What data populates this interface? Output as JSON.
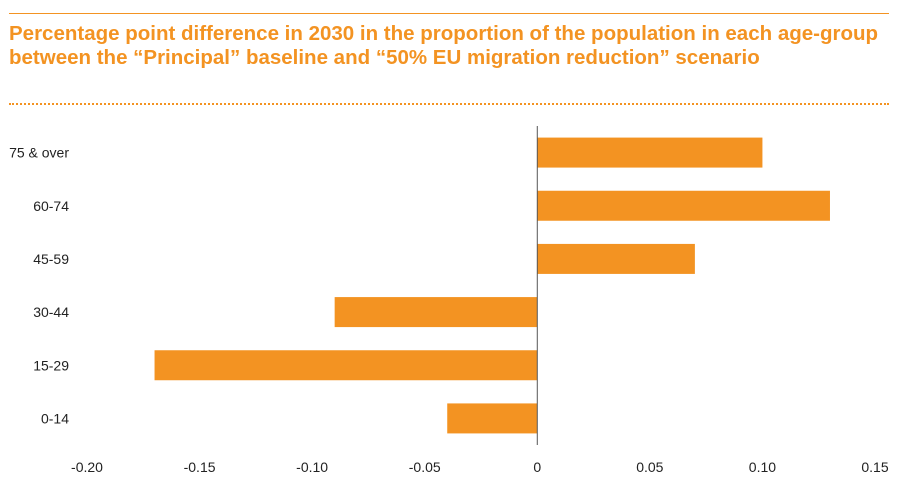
{
  "title": "Percentage point difference in 2030 in the proportion of the population in each age-group between the “Principal” baseline and “50% EU migration reduction” scenario",
  "colors": {
    "accent": "#f39322",
    "bar": "#f39322",
    "axis": "#555555",
    "text": "#222222"
  },
  "chart_data": {
    "type": "bar",
    "orientation": "horizontal",
    "title": "Percentage point difference in 2030 in the proportion of the population in each age-group between the “Principal” baseline and “50% EU migration reduction” scenario",
    "xlabel": "",
    "ylabel": "",
    "categories": [
      "75 & over",
      "60-74",
      "45-59",
      "30-44",
      "15-29",
      "0-14"
    ],
    "values": [
      0.1,
      0.13,
      0.07,
      -0.09,
      -0.17,
      -0.04
    ],
    "xlim": [
      -0.2,
      0.15
    ],
    "xticks": [
      "-0.20",
      "-0.15",
      "-0.10",
      "-0.05",
      "0",
      "0.05",
      "0.10",
      "0.15"
    ],
    "grid": false,
    "legend": "none"
  }
}
